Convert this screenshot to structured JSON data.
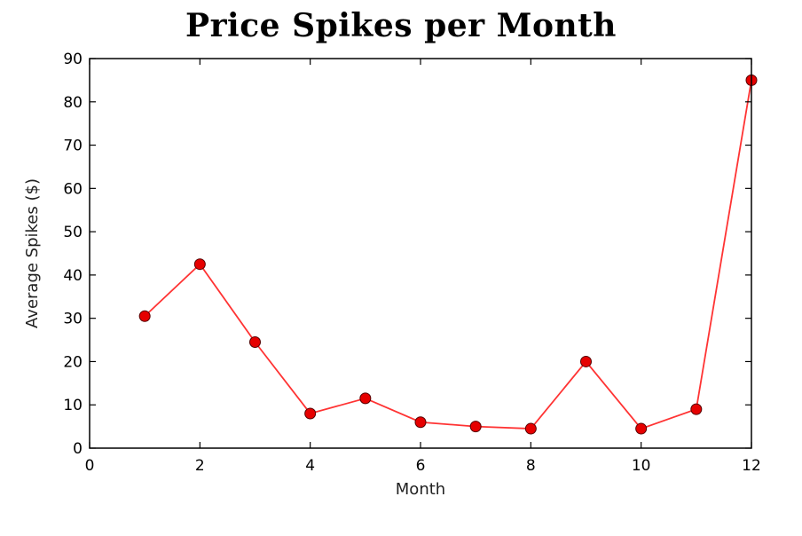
{
  "chart_data": {
    "type": "line",
    "title": "Price Spikes per Month",
    "xlabel": "Month",
    "ylabel": "Average Spikes ($)",
    "xlim": [
      0,
      12
    ],
    "ylim": [
      0,
      90
    ],
    "xticks": [
      0,
      2,
      4,
      6,
      8,
      10,
      12
    ],
    "yticks": [
      0,
      10,
      20,
      30,
      40,
      50,
      60,
      70,
      80,
      90
    ],
    "grid": false,
    "legend": "none",
    "series": [
      {
        "x": [
          1,
          2,
          3,
          4,
          5,
          6,
          7,
          8,
          9,
          10,
          11,
          12
        ],
        "y": [
          30.5,
          42.5,
          24.5,
          8,
          11.5,
          6,
          5,
          4.5,
          20,
          4.5,
          9,
          85
        ],
        "line_color": "#ff3333",
        "marker_color": "#e60000",
        "marker": "circle"
      }
    ]
  }
}
